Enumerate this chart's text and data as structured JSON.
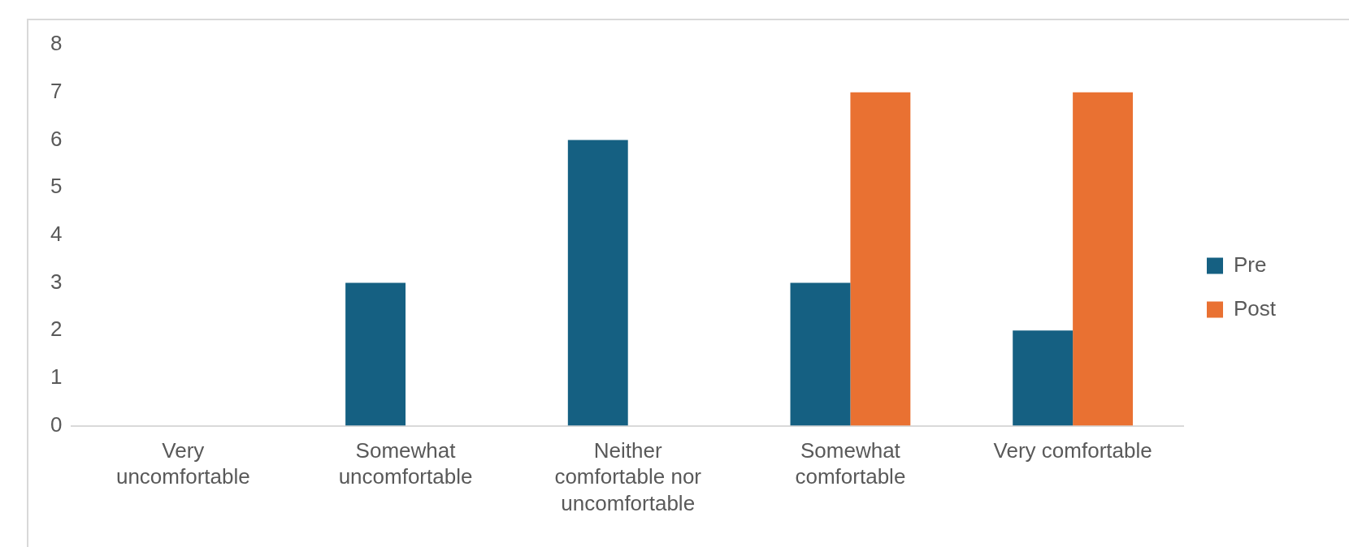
{
  "chart_data": {
    "type": "bar",
    "categories": [
      "Very uncomfortable",
      "Somewhat uncomfortable",
      "Neither comfortable nor uncomfortable",
      "Somewhat comfortable",
      "Very comfortable"
    ],
    "series": [
      {
        "name": "Pre",
        "color": "#156082",
        "values": [
          0,
          3,
          6,
          3,
          2
        ]
      },
      {
        "name": "Post",
        "color": "#e97132",
        "values": [
          0,
          0,
          0,
          7,
          7
        ]
      }
    ],
    "ylim": [
      0,
      8
    ],
    "yticks": [
      0,
      1,
      2,
      3,
      4,
      5,
      6,
      7,
      8
    ],
    "grid": false,
    "legend": "right"
  }
}
